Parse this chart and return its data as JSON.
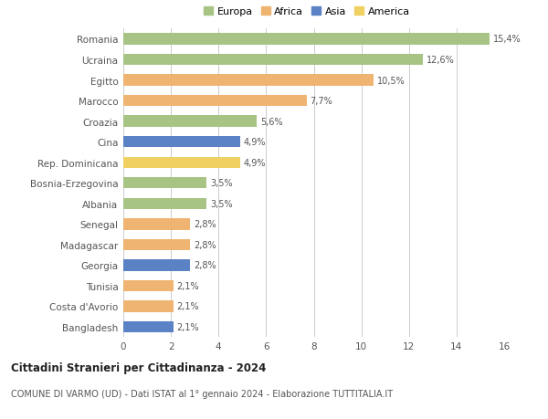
{
  "countries": [
    "Romania",
    "Ucraina",
    "Egitto",
    "Marocco",
    "Croazia",
    "Cina",
    "Rep. Dominicana",
    "Bosnia-Erzegovina",
    "Albania",
    "Senegal",
    "Madagascar",
    "Georgia",
    "Tunisia",
    "Costa d'Avorio",
    "Bangladesh"
  ],
  "values": [
    15.4,
    12.6,
    10.5,
    7.7,
    5.6,
    4.9,
    4.9,
    3.5,
    3.5,
    2.8,
    2.8,
    2.8,
    2.1,
    2.1,
    2.1
  ],
  "labels": [
    "15,4%",
    "12,6%",
    "10,5%",
    "7,7%",
    "5,6%",
    "4,9%",
    "4,9%",
    "3,5%",
    "3,5%",
    "2,8%",
    "2,8%",
    "2,8%",
    "2,1%",
    "2,1%",
    "2,1%"
  ],
  "continents": [
    "Europa",
    "Europa",
    "Africa",
    "Africa",
    "Europa",
    "Asia",
    "America",
    "Europa",
    "Europa",
    "Africa",
    "Africa",
    "Asia",
    "Africa",
    "Africa",
    "Asia"
  ],
  "colors": {
    "Europa": "#a8c484",
    "Africa": "#f0b472",
    "Asia": "#5b82c4",
    "America": "#f0d060"
  },
  "xlim": [
    0,
    16
  ],
  "xticks": [
    0,
    2,
    4,
    6,
    8,
    10,
    12,
    14,
    16
  ],
  "title": "Cittadini Stranieri per Cittadinanza - 2024",
  "subtitle": "COMUNE DI VARMO (UD) - Dati ISTAT al 1° gennaio 2024 - Elaborazione TUTTITALIA.IT",
  "background_color": "#ffffff",
  "bar_height": 0.55,
  "grid_color": "#cccccc"
}
